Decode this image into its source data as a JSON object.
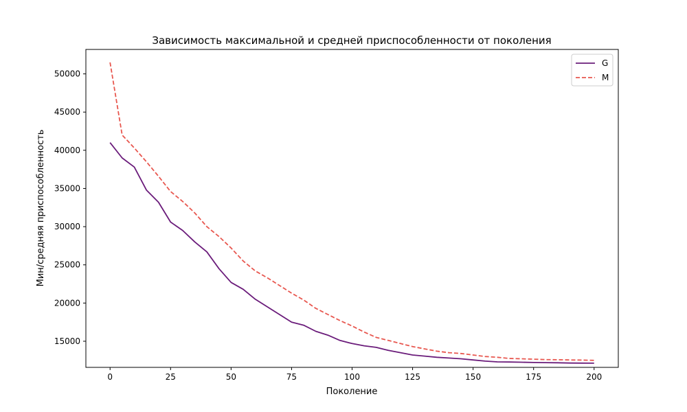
{
  "chart_data": {
    "type": "line",
    "title": "Зависимость максимальной и средней приспособленности от поколения",
    "xlabel": "Поколение",
    "ylabel": "Мин/средняя приспособленность",
    "xlim": [
      -10,
      210
    ],
    "ylim": [
      11580,
      53200
    ],
    "xticks": [
      0,
      25,
      50,
      75,
      100,
      125,
      150,
      175,
      200
    ],
    "yticks": [
      15000,
      20000,
      25000,
      30000,
      35000,
      40000,
      45000,
      50000
    ],
    "legend_position": "top-right",
    "grid": false,
    "x_start": 0,
    "x_step": 5,
    "series": [
      {
        "name": "G",
        "color": "#6a1b7a",
        "dash": "solid",
        "values": [
          41000,
          39000,
          37800,
          34800,
          33200,
          30600,
          29500,
          28000,
          26700,
          24500,
          22700,
          21800,
          20500,
          19500,
          18500,
          17500,
          17100,
          16300,
          15800,
          15100,
          14700,
          14400,
          14200,
          13800,
          13500,
          13200,
          13050,
          12900,
          12800,
          12700,
          12550,
          12400,
          12300,
          12280,
          12250,
          12220,
          12200,
          12180,
          12150,
          12140,
          12130
        ]
      },
      {
        "name": "M",
        "color": "#e8574f",
        "dash": "dashed",
        "values": [
          51500,
          42000,
          40300,
          38500,
          36600,
          34600,
          33300,
          31800,
          30000,
          28700,
          27200,
          25500,
          24200,
          23300,
          22300,
          21300,
          20400,
          19300,
          18500,
          17700,
          17000,
          16200,
          15500,
          15100,
          14700,
          14300,
          14000,
          13700,
          13500,
          13400,
          13200,
          13000,
          12900,
          12750,
          12700,
          12650,
          12600,
          12580,
          12550,
          12530,
          12500
        ]
      }
    ]
  }
}
